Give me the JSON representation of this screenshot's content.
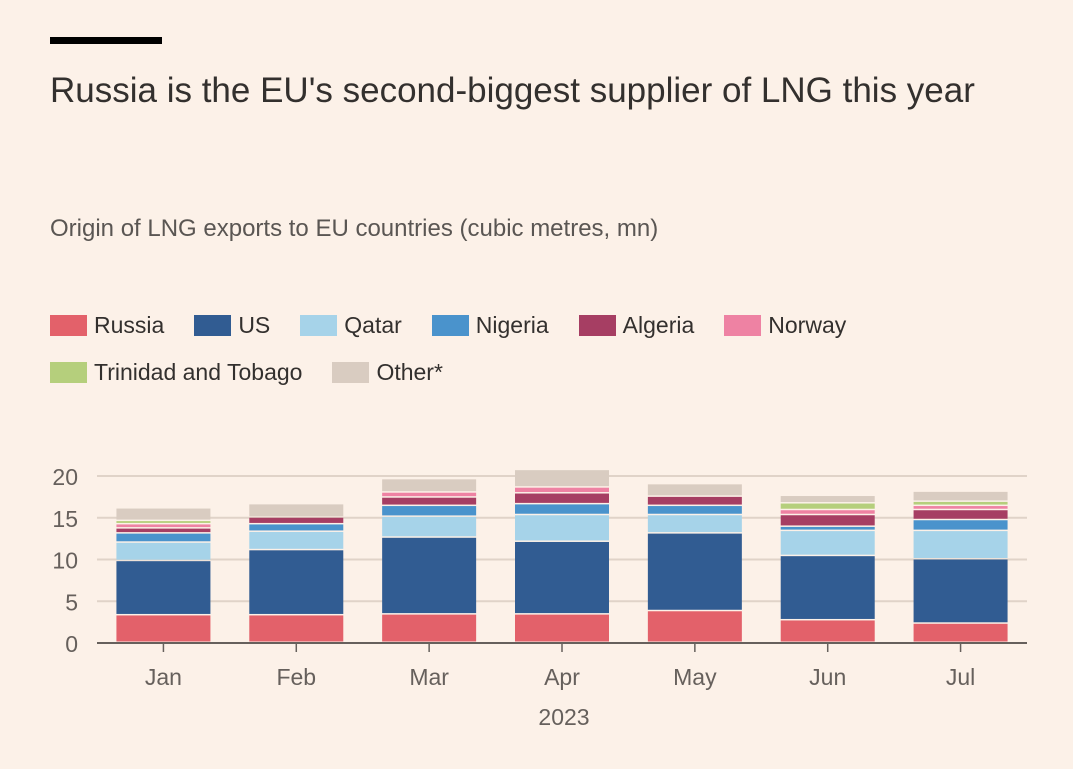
{
  "title": "Russia is the EU's second-biggest supplier of LNG this year",
  "subtitle": "Origin of LNG exports to EU countries (cubic metres, mn)",
  "colors": {
    "background": "#fcf1e8",
    "gridline": "#e0d3c8",
    "axis": "#66605c"
  },
  "chart_data": {
    "type": "bar",
    "stacked": true,
    "categories": [
      "Jan",
      "Feb",
      "Mar",
      "Apr",
      "May",
      "Jun",
      "Jul"
    ],
    "xlabel": "2023",
    "ylabel": "",
    "ylim": [
      0,
      20
    ],
    "yticks": [
      0,
      5,
      10,
      15,
      20
    ],
    "grid": true,
    "legend_position": "top",
    "series": [
      {
        "name": "Russia",
        "color": "#e3616a",
        "values": [
          3.3,
          3.3,
          3.4,
          3.4,
          3.8,
          2.7,
          2.3
        ]
      },
      {
        "name": "US",
        "color": "#315c92",
        "values": [
          6.5,
          7.8,
          9.2,
          8.7,
          9.3,
          7.7,
          7.7
        ]
      },
      {
        "name": "Qatar",
        "color": "#a6d3e9",
        "values": [
          2.2,
          2.2,
          2.5,
          3.2,
          2.2,
          3.0,
          3.4
        ]
      },
      {
        "name": "Nigeria",
        "color": "#4a93cc",
        "values": [
          1.1,
          0.9,
          1.3,
          1.3,
          1.1,
          0.5,
          1.3
        ]
      },
      {
        "name": "Algeria",
        "color": "#a63e63",
        "values": [
          0.6,
          0.8,
          1.0,
          1.3,
          1.1,
          1.4,
          1.2
        ]
      },
      {
        "name": "Norway",
        "color": "#ee82a3",
        "values": [
          0.5,
          0.0,
          0.6,
          0.7,
          0.0,
          0.6,
          0.5
        ]
      },
      {
        "name": "Trinidad and Tobago",
        "color": "#b5cf7c",
        "values": [
          0.4,
          0.0,
          0.0,
          0.0,
          0.0,
          0.8,
          0.5
        ]
      },
      {
        "name": "Other*",
        "color": "#d9ccc1",
        "values": [
          1.5,
          1.6,
          1.6,
          2.1,
          1.5,
          0.9,
          1.2
        ]
      }
    ]
  }
}
